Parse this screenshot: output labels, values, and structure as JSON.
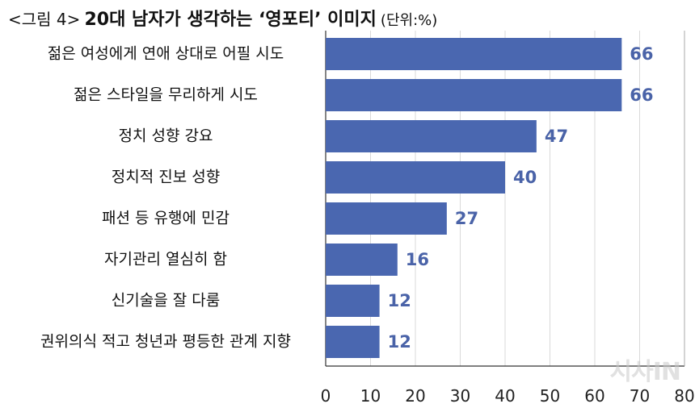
{
  "title": {
    "prefix": "<그림 4>",
    "main": "20대 남자가 생각하는 ‘영포티’ 이미지",
    "unit": "(단위:%)"
  },
  "watermark": "시사IN",
  "chart_data": {
    "type": "bar",
    "orientation": "horizontal",
    "categories": [
      "젊은 여성에게 연애 상대로 어필 시도",
      "젊은 스타일을 무리하게 시도",
      "정치 성향 강요",
      "정치적 진보 성향",
      "패션 등 유행에 민감",
      "자기관리 열심히 함",
      "신기술을 잘 다룸",
      "권위의식 적고 청년과 평등한 관계 지향"
    ],
    "values": [
      66,
      66,
      47,
      40,
      27,
      16,
      12,
      12
    ],
    "xlim": [
      0,
      80
    ],
    "xticks": [
      0,
      10,
      20,
      30,
      40,
      50,
      60,
      70,
      80
    ],
    "bar_color": "#4a67b0",
    "label_color": "#4a63a8",
    "grid": true
  }
}
